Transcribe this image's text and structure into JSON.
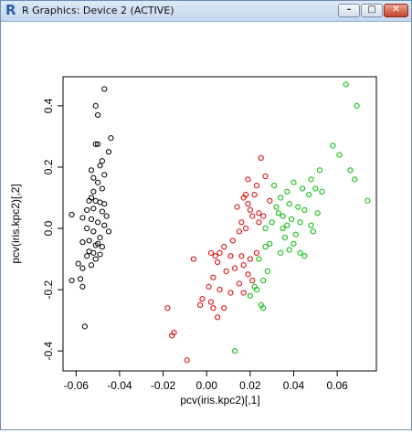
{
  "window": {
    "title": "R Graphics: Device 2 (ACTIVE)",
    "app_icon_glyph": "R",
    "minimize_glyph": "–",
    "maximize_glyph": "□",
    "close_glyph": "✕"
  },
  "chart_data": {
    "type": "scatter",
    "title": "",
    "xlabel": "pcv(iris.kpc2)[,1]",
    "ylabel": "pcv(iris.kpc2)[,2]",
    "xlim": [
      -0.066,
      0.078
    ],
    "ylim": [
      -0.465,
      0.495
    ],
    "xticks": [
      -0.06,
      -0.04,
      -0.02,
      0.0,
      0.02,
      0.04,
      0.06
    ],
    "xtick_labels": [
      "-0.06",
      "-0.04",
      "-0.02",
      "0.00",
      "0.02",
      "0.04",
      "0.06"
    ],
    "yticks": [
      -0.4,
      -0.2,
      0.0,
      0.2,
      0.4
    ],
    "ytick_labels": [
      "-0.4",
      "-0.2",
      "0.0",
      "0.2",
      "0.4"
    ],
    "grid": false,
    "series": [
      {
        "color": "#000000",
        "points": [
          [
            -0.047,
            0.455
          ],
          [
            -0.051,
            0.4
          ],
          [
            -0.05,
            0.37
          ],
          [
            -0.05,
            0.275
          ],
          [
            -0.051,
            0.275
          ],
          [
            -0.044,
            0.295
          ],
          [
            -0.045,
            0.25
          ],
          [
            -0.048,
            0.22
          ],
          [
            -0.049,
            0.205
          ],
          [
            -0.053,
            0.19
          ],
          [
            -0.047,
            0.175
          ],
          [
            -0.052,
            0.165
          ],
          [
            -0.05,
            0.15
          ],
          [
            -0.048,
            0.13
          ],
          [
            -0.052,
            0.12
          ],
          [
            -0.053,
            0.1
          ],
          [
            -0.054,
            0.09
          ],
          [
            -0.051,
            0.09
          ],
          [
            -0.049,
            0.085
          ],
          [
            -0.047,
            0.08
          ],
          [
            -0.052,
            0.065
          ],
          [
            -0.055,
            0.06
          ],
          [
            -0.048,
            0.055
          ],
          [
            -0.046,
            0.04
          ],
          [
            -0.057,
            0.035
          ],
          [
            -0.062,
            0.045
          ],
          [
            -0.053,
            0.03
          ],
          [
            -0.05,
            0.02
          ],
          [
            -0.047,
            0.01
          ],
          [
            -0.055,
            0.0
          ],
          [
            -0.052,
            -0.01
          ],
          [
            -0.045,
            -0.01
          ],
          [
            -0.049,
            -0.03
          ],
          [
            -0.054,
            -0.04
          ],
          [
            -0.057,
            -0.045
          ],
          [
            -0.051,
            -0.055
          ],
          [
            -0.048,
            -0.06
          ],
          [
            -0.054,
            -0.075
          ],
          [
            -0.052,
            -0.08
          ],
          [
            -0.049,
            -0.085
          ],
          [
            -0.055,
            -0.09
          ],
          [
            -0.051,
            -0.1
          ],
          [
            -0.059,
            -0.115
          ],
          [
            -0.053,
            -0.12
          ],
          [
            -0.057,
            -0.13
          ],
          [
            -0.062,
            -0.17
          ],
          [
            -0.058,
            -0.165
          ],
          [
            -0.057,
            -0.19
          ],
          [
            -0.056,
            -0.32
          ],
          [
            -0.05,
            -0.05
          ]
        ]
      },
      {
        "color": "#dd0000",
        "points": [
          [
            0.025,
            0.23
          ],
          [
            0.019,
            0.16
          ],
          [
            0.023,
            0.14
          ],
          [
            0.027,
            0.17
          ],
          [
            0.029,
            0.09
          ],
          [
            0.022,
            0.11
          ],
          [
            0.018,
            0.11
          ],
          [
            0.017,
            0.1
          ],
          [
            0.019,
            0.08
          ],
          [
            0.02,
            0.06
          ],
          [
            0.014,
            0.07
          ],
          [
            0.016,
            0.02
          ],
          [
            0.021,
            0.04
          ],
          [
            0.024,
            0.05
          ],
          [
            0.026,
            0.04
          ],
          [
            0.024,
            0.02
          ],
          [
            0.018,
            0.0
          ],
          [
            0.015,
            -0.01
          ],
          [
            0.012,
            -0.04
          ],
          [
            0.008,
            -0.06
          ],
          [
            0.006,
            -0.08
          ],
          [
            0.004,
            -0.09
          ],
          [
            0.002,
            -0.08
          ],
          [
            0.005,
            -0.11
          ],
          [
            0.011,
            -0.09
          ],
          [
            0.016,
            -0.09
          ],
          [
            0.02,
            -0.1
          ],
          [
            0.023,
            -0.08
          ],
          [
            0.017,
            -0.12
          ],
          [
            0.013,
            -0.13
          ],
          [
            0.009,
            -0.14
          ],
          [
            0.003,
            -0.16
          ],
          [
            0.001,
            -0.19
          ],
          [
            0.006,
            -0.2
          ],
          [
            0.011,
            -0.21
          ],
          [
            0.015,
            -0.18
          ],
          [
            0.019,
            -0.15
          ],
          [
            0.021,
            -0.17
          ],
          [
            0.017,
            -0.21
          ],
          [
            -0.002,
            -0.23
          ],
          [
            -0.003,
            -0.25
          ],
          [
            0.002,
            -0.24
          ],
          [
            0.003,
            -0.26
          ],
          [
            0.005,
            -0.29
          ],
          [
            0.008,
            -0.26
          ],
          [
            -0.018,
            -0.26
          ],
          [
            -0.015,
            -0.34
          ],
          [
            -0.009,
            -0.43
          ],
          [
            -0.016,
            -0.35
          ],
          [
            -0.006,
            -0.1
          ]
        ]
      },
      {
        "color": "#00bb00",
        "points": [
          [
            0.064,
            0.47
          ],
          [
            0.069,
            0.4
          ],
          [
            0.058,
            0.27
          ],
          [
            0.061,
            0.24
          ],
          [
            0.052,
            0.19
          ],
          [
            0.066,
            0.19
          ],
          [
            0.068,
            0.16
          ],
          [
            0.074,
            0.09
          ],
          [
            0.048,
            0.16
          ],
          [
            0.044,
            0.13
          ],
          [
            0.05,
            0.13
          ],
          [
            0.047,
            0.11
          ],
          [
            0.053,
            0.12
          ],
          [
            0.04,
            0.15
          ],
          [
            0.031,
            0.14
          ],
          [
            0.037,
            0.12
          ],
          [
            0.034,
            0.1
          ],
          [
            0.038,
            0.08
          ],
          [
            0.042,
            0.07
          ],
          [
            0.045,
            0.06
          ],
          [
            0.032,
            0.07
          ],
          [
            0.035,
            0.04
          ],
          [
            0.039,
            0.03
          ],
          [
            0.037,
            0.01
          ],
          [
            0.043,
            0.02
          ],
          [
            0.048,
            0.01
          ],
          [
            0.051,
            0.05
          ],
          [
            0.049,
            -0.01
          ],
          [
            0.041,
            -0.02
          ],
          [
            0.035,
            0.0
          ],
          [
            0.03,
            0.02
          ],
          [
            0.027,
            0.0
          ],
          [
            0.029,
            -0.05
          ],
          [
            0.027,
            -0.06
          ],
          [
            0.034,
            -0.08
          ],
          [
            0.038,
            -0.07
          ],
          [
            0.045,
            -0.09
          ],
          [
            0.043,
            -0.08
          ],
          [
            0.024,
            -0.1
          ],
          [
            0.028,
            -0.14
          ],
          [
            0.026,
            -0.17
          ],
          [
            0.022,
            -0.19
          ],
          [
            0.023,
            -0.2
          ],
          [
            0.025,
            -0.25
          ],
          [
            0.026,
            -0.26
          ],
          [
            0.02,
            -0.22
          ],
          [
            0.013,
            -0.4
          ],
          [
            0.033,
            0.05
          ],
          [
            0.036,
            -0.03
          ],
          [
            0.04,
            -0.05
          ]
        ]
      }
    ]
  }
}
